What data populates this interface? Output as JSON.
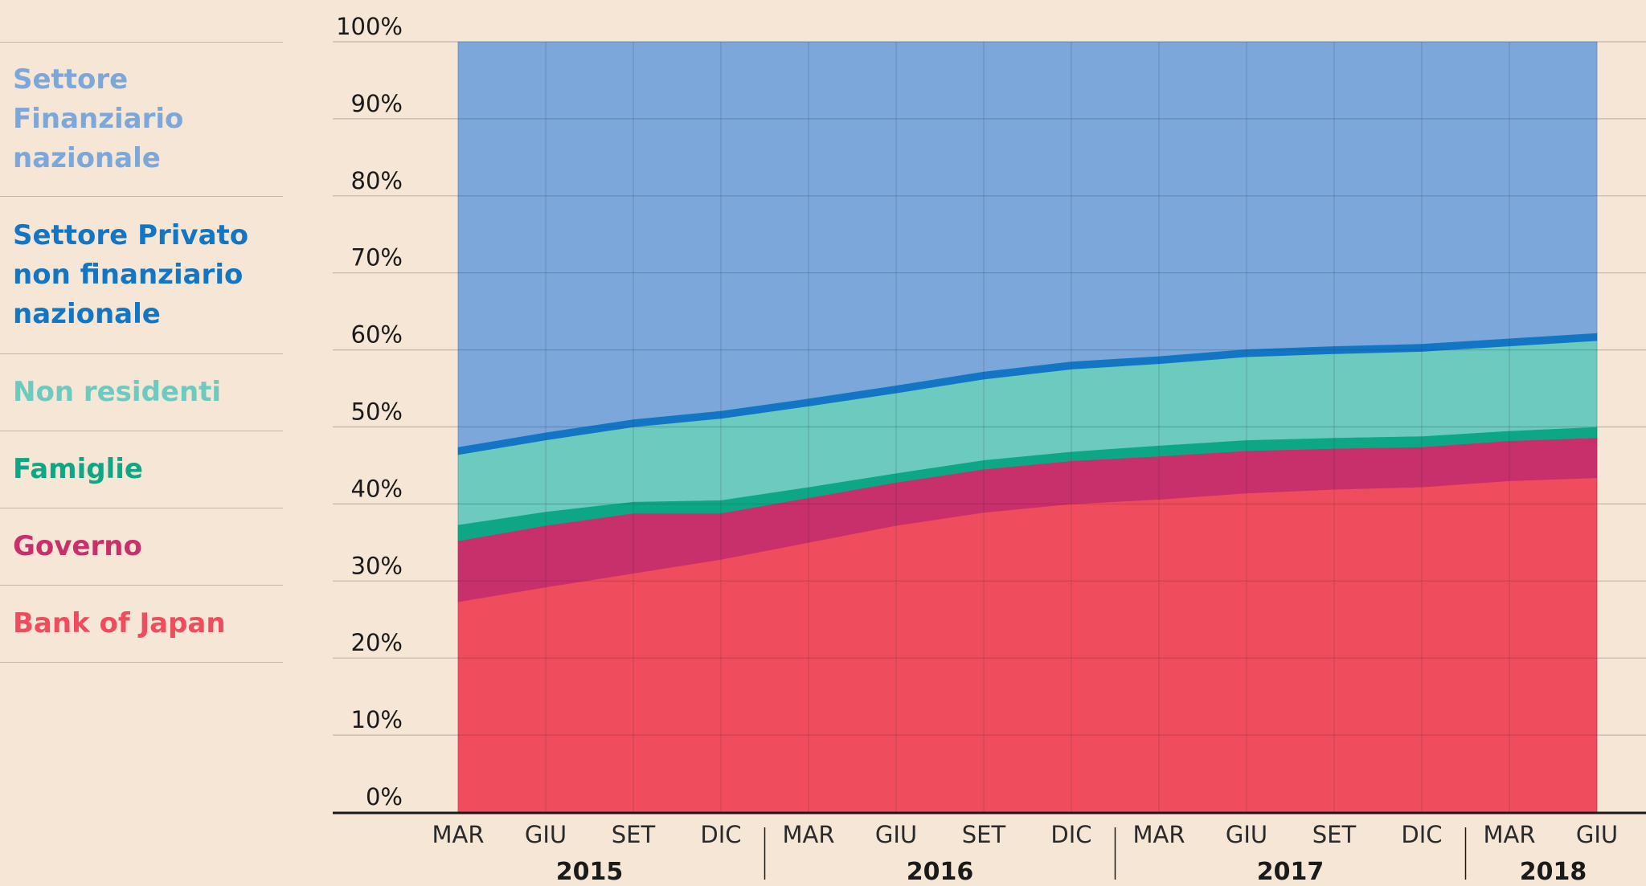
{
  "chart_data": {
    "type": "area",
    "stacked": true,
    "ylim": [
      0,
      100
    ],
    "ytick_labels": [
      "0%",
      "10%",
      "20%",
      "30%",
      "40%",
      "50%",
      "60%",
      "70%",
      "80%",
      "90%",
      "100%"
    ],
    "x_labels": [
      "MAR",
      "GIU",
      "SET",
      "DIC",
      "MAR",
      "GIU",
      "SET",
      "DIC",
      "MAR",
      "GIU",
      "SET",
      "DIC",
      "MAR",
      "GIU"
    ],
    "year_labels": [
      "2015",
      "2016",
      "2017",
      "2018"
    ],
    "grid": true,
    "legend_position": "left",
    "series": [
      {
        "name": "Bank of Japan",
        "color": "#ef4d5d",
        "values": [
          27.3,
          29.2,
          31.0,
          32.8,
          35.0,
          37.2,
          38.9,
          40.0,
          40.6,
          41.4,
          41.9,
          42.2,
          43.0,
          43.4
        ]
      },
      {
        "name": "Governo",
        "color": "#c7306a",
        "values": [
          7.9,
          8.0,
          7.8,
          6.0,
          5.8,
          5.6,
          5.6,
          5.6,
          5.6,
          5.5,
          5.3,
          5.2,
          5.2,
          5.2
        ]
      },
      {
        "name": "Famiglie",
        "color": "#0ea785",
        "values": [
          2.1,
          1.8,
          1.5,
          1.7,
          1.4,
          1.2,
          1.2,
          1.2,
          1.4,
          1.4,
          1.4,
          1.4,
          1.3,
          1.4
        ]
      },
      {
        "name": "Non residenti",
        "color": "#6ccabf",
        "values": [
          9.1,
          9.3,
          9.7,
          10.6,
          10.5,
          10.4,
          10.5,
          10.7,
          10.6,
          10.8,
          10.9,
          11.0,
          11.0,
          11.2
        ]
      },
      {
        "name": "Settore Privato non finanziario nazionale",
        "color": "#1276c4",
        "values": [
          1.0,
          1.0,
          1.0,
          1.0,
          1.0,
          1.0,
          1.0,
          1.0,
          1.0,
          1.0,
          1.0,
          1.0,
          1.0,
          1.0
        ]
      },
      {
        "name": "Settore Finanziario nazionale",
        "color": "#7ba7da",
        "values": [
          52.6,
          50.7,
          49.0,
          47.9,
          46.3,
          44.6,
          42.8,
          41.5,
          40.8,
          39.9,
          39.5,
          39.2,
          38.5,
          37.8
        ]
      }
    ]
  },
  "legend": [
    {
      "label": "Settore Finanziario nazionale",
      "color": "#7ba7da"
    },
    {
      "label": "Settore Privato non finanziario nazionale",
      "color": "#1276c4"
    },
    {
      "label": "Non residenti",
      "color": "#6ccabf"
    },
    {
      "label": "Famiglie",
      "color": "#0ea785"
    },
    {
      "label": "Governo",
      "color": "#c7306a"
    },
    {
      "label": "Bank of Japan",
      "color": "#ef4d5d"
    }
  ]
}
